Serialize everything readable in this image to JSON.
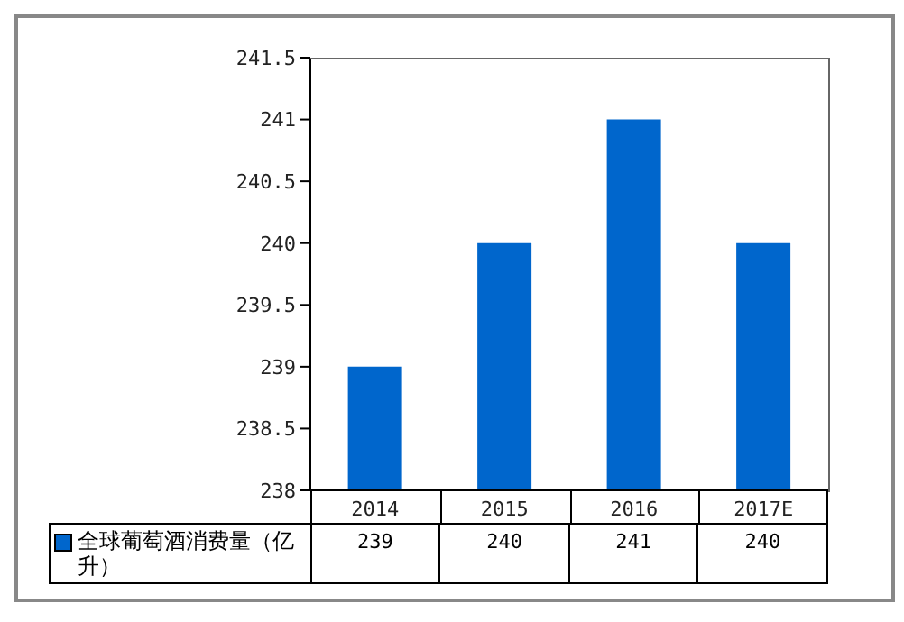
{
  "chart_data": {
    "type": "bar",
    "categories": [
      "2014",
      "2015",
      "2016",
      "2017E"
    ],
    "series": [
      {
        "name": "全球葡萄酒消费量（亿升）",
        "color": "#0066cc",
        "values": [
          239,
          240,
          241,
          240
        ]
      }
    ],
    "ylim": [
      238,
      241.5
    ],
    "yticks": [
      238,
      238.5,
      239,
      239.5,
      240,
      240.5,
      241,
      241.5
    ],
    "data_labels": true,
    "legend": "bottom left"
  }
}
